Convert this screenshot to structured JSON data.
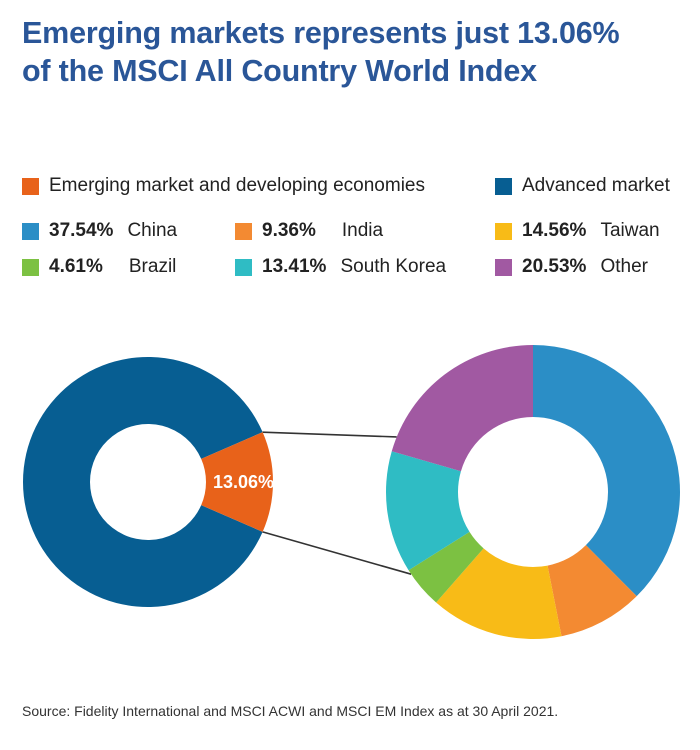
{
  "title": {
    "line1": "Emerging markets represents just 13.06%",
    "line2": "of the MSCI All Country World Index"
  },
  "colors": {
    "advanced": "#075e92",
    "emerging": "#e8621a",
    "china": "#2b8ec6",
    "india": "#f38a32",
    "taiwan": "#f8bb17",
    "brazil": "#7cc142",
    "south_korea": "#2fbcc4",
    "other": "#a159a2",
    "connector": "#333333"
  },
  "legend": {
    "emerging": "Emerging market and developing economies",
    "advanced": "Advanced market"
  },
  "source": "Source: Fidelity International and MSCI ACWI and MSCI EM Index as at 30 April 2021.",
  "chart_data": [
    {
      "type": "pie",
      "subtype": "donut",
      "slices": [
        {
          "label": "Emerging market and developing economies",
          "value": 13.06,
          "value_label": "13.06%"
        },
        {
          "label": "Advanced market",
          "value": 86.94
        }
      ]
    },
    {
      "type": "pie",
      "subtype": "donut",
      "slices": [
        {
          "label": "China",
          "value": 37.54,
          "value_label": "37.54%"
        },
        {
          "label": "India",
          "value": 9.36,
          "value_label": "9.36%"
        },
        {
          "label": "Taiwan",
          "value": 14.56,
          "value_label": "14.56%"
        },
        {
          "label": "Brazil",
          "value": 4.61,
          "value_label": "4.61%"
        },
        {
          "label": "South Korea",
          "value": 13.41,
          "value_label": "13.41%"
        },
        {
          "label": "Other",
          "value": 20.53,
          "value_label": "20.53%"
        }
      ]
    }
  ]
}
